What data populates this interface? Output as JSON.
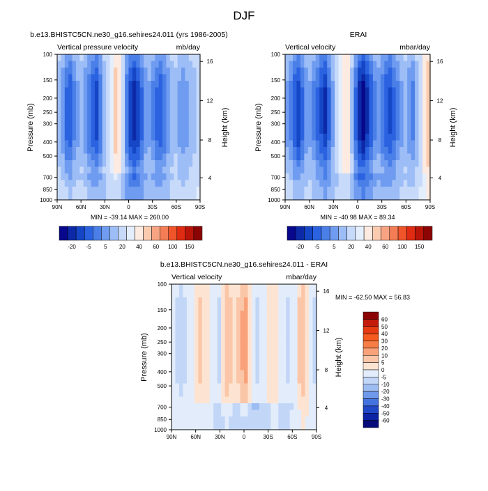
{
  "figure": {
    "title": "DJF"
  },
  "chart_data": [
    {
      "type": "heatmap",
      "title": "b.e13.BHISTC5CN.ne30_g16.sehires24.011 (yrs 1986-2005)",
      "left_subtitle": "Vertical pressure velocity",
      "right_subtitle": "mb/day",
      "ylabel": "Pressure (mb)",
      "ylabel_right": "Height (km)",
      "x_ticks": [
        "90N",
        "60N",
        "30N",
        "0",
        "30S",
        "60S",
        "90S"
      ],
      "y_ticks": [
        "100",
        "150",
        "200",
        "250",
        "300",
        "400",
        "500",
        "700",
        "850",
        "1000"
      ],
      "y_ticks_right": [
        "16",
        "12",
        "8",
        "4"
      ],
      "xlim": [
        90,
        -90
      ],
      "ylim": [
        1000,
        100
      ],
      "min_max_text": "MIN = -39.14  MAX = 260.00",
      "colorbar": {
        "orientation": "horizontal",
        "labels": [
          "-20",
          "-5",
          "5",
          "20",
          "40",
          "60",
          "100",
          "150"
        ],
        "colors": [
          "#08088c",
          "#0c2aa8",
          "#1546c6",
          "#2b62e0",
          "#4a7fe8",
          "#6f9cf0",
          "#9dbdf6",
          "#c8dafa",
          "#e4eefc",
          "#fdeae0",
          "#fbcbb0",
          "#f8a482",
          "#f57d55",
          "#f0542b",
          "#de2b12",
          "#b81408",
          "#8c0404"
        ]
      },
      "profile": [
        -10,
        -14,
        -20,
        -22,
        -16,
        -12,
        -10,
        -14,
        -18,
        -22,
        -25,
        -18,
        -10,
        -4,
        2,
        8,
        6,
        -6,
        -18,
        -26,
        -30,
        -26,
        -20,
        -14,
        -12,
        -16,
        -20,
        -22,
        -18,
        -14,
        -10,
        -8,
        -12,
        -14,
        -12,
        -10,
        -8,
        -6
      ]
    },
    {
      "type": "heatmap",
      "title": "ERAI",
      "left_subtitle": "Vertical velocity",
      "right_subtitle": "mbar/day",
      "ylabel": "Pressure (mb)",
      "ylabel_right": "Height (km)",
      "x_ticks": [
        "90N",
        "60N",
        "30N",
        "0",
        "30S",
        "60S",
        "90S"
      ],
      "y_ticks": [
        "100",
        "150",
        "200",
        "250",
        "300",
        "400",
        "500",
        "700",
        "850",
        "1000"
      ],
      "y_ticks_right": [
        "16",
        "12",
        "8",
        "4"
      ],
      "xlim": [
        90,
        -90
      ],
      "ylim": [
        1000,
        100
      ],
      "min_max_text": "MIN = -40.98  MAX =  89.34",
      "colorbar": {
        "orientation": "horizontal",
        "labels": [
          "-20",
          "-5",
          "5",
          "20",
          "40",
          "60",
          "100",
          "150"
        ],
        "colors": [
          "#08088c",
          "#0c2aa8",
          "#1546c6",
          "#2b62e0",
          "#4a7fe8",
          "#6f9cf0",
          "#9dbdf6",
          "#c8dafa",
          "#e4eefc",
          "#fdeae0",
          "#fbcbb0",
          "#f8a482",
          "#f57d55",
          "#f0542b",
          "#de2b12",
          "#b81408",
          "#8c0404"
        ]
      },
      "profile": [
        -12,
        -16,
        -22,
        -26,
        -20,
        -14,
        -12,
        -16,
        -20,
        -24,
        -28,
        -20,
        -12,
        -6,
        0,
        6,
        4,
        -8,
        -20,
        -30,
        -34,
        -28,
        -22,
        -16,
        -14,
        -18,
        -22,
        -24,
        -20,
        -16,
        -12,
        -10,
        -14,
        -16,
        -10,
        -4,
        4,
        10
      ]
    },
    {
      "type": "heatmap",
      "title": "b.e13.BHISTC5CN.ne30_g16.sehires24.011 - ERAI",
      "left_subtitle": "Vertical velocity",
      "right_subtitle": "mbar/day",
      "ylabel": "Pressure (mb)",
      "ylabel_right": "Height (km)",
      "x_ticks": [
        "90N",
        "60N",
        "30N",
        "0",
        "30S",
        "60S",
        "90S"
      ],
      "y_ticks": [
        "100",
        "150",
        "200",
        "250",
        "300",
        "400",
        "500",
        "700",
        "850",
        "1000"
      ],
      "y_ticks_right": [
        "16",
        "12",
        "8",
        "4"
      ],
      "xlim": [
        90,
        -90
      ],
      "ylim": [
        1000,
        100
      ],
      "min_max_text": "MIN = -62.50  MAX =  56.83",
      "colorbar": {
        "orientation": "vertical",
        "labels": [
          "60",
          "50",
          "40",
          "30",
          "20",
          "10",
          "5",
          "0",
          "-5",
          "-10",
          "-20",
          "-30",
          "-40",
          "-50",
          "-60"
        ],
        "colors": [
          "#8c0404",
          "#c41a0c",
          "#e53a12",
          "#f55a1e",
          "#f77d46",
          "#f9a27a",
          "#fbc6a8",
          "#fde4d2",
          "#e2ecfb",
          "#c2d6f7",
          "#9dbcf2",
          "#6f99ea",
          "#4473e0",
          "#2148c6",
          "#0d24a4",
          "#070a7a"
        ]
      },
      "profile": [
        -2,
        -3,
        -4,
        -3,
        -2,
        -1,
        2,
        3,
        2,
        1,
        0,
        -2,
        -3,
        2,
        4,
        3,
        2,
        3,
        5,
        6,
        2,
        -2,
        -3,
        -2,
        -1,
        1,
        2,
        1,
        -1,
        -2,
        -3,
        -2,
        -1,
        3,
        4,
        2,
        -1,
        -3
      ]
    }
  ]
}
